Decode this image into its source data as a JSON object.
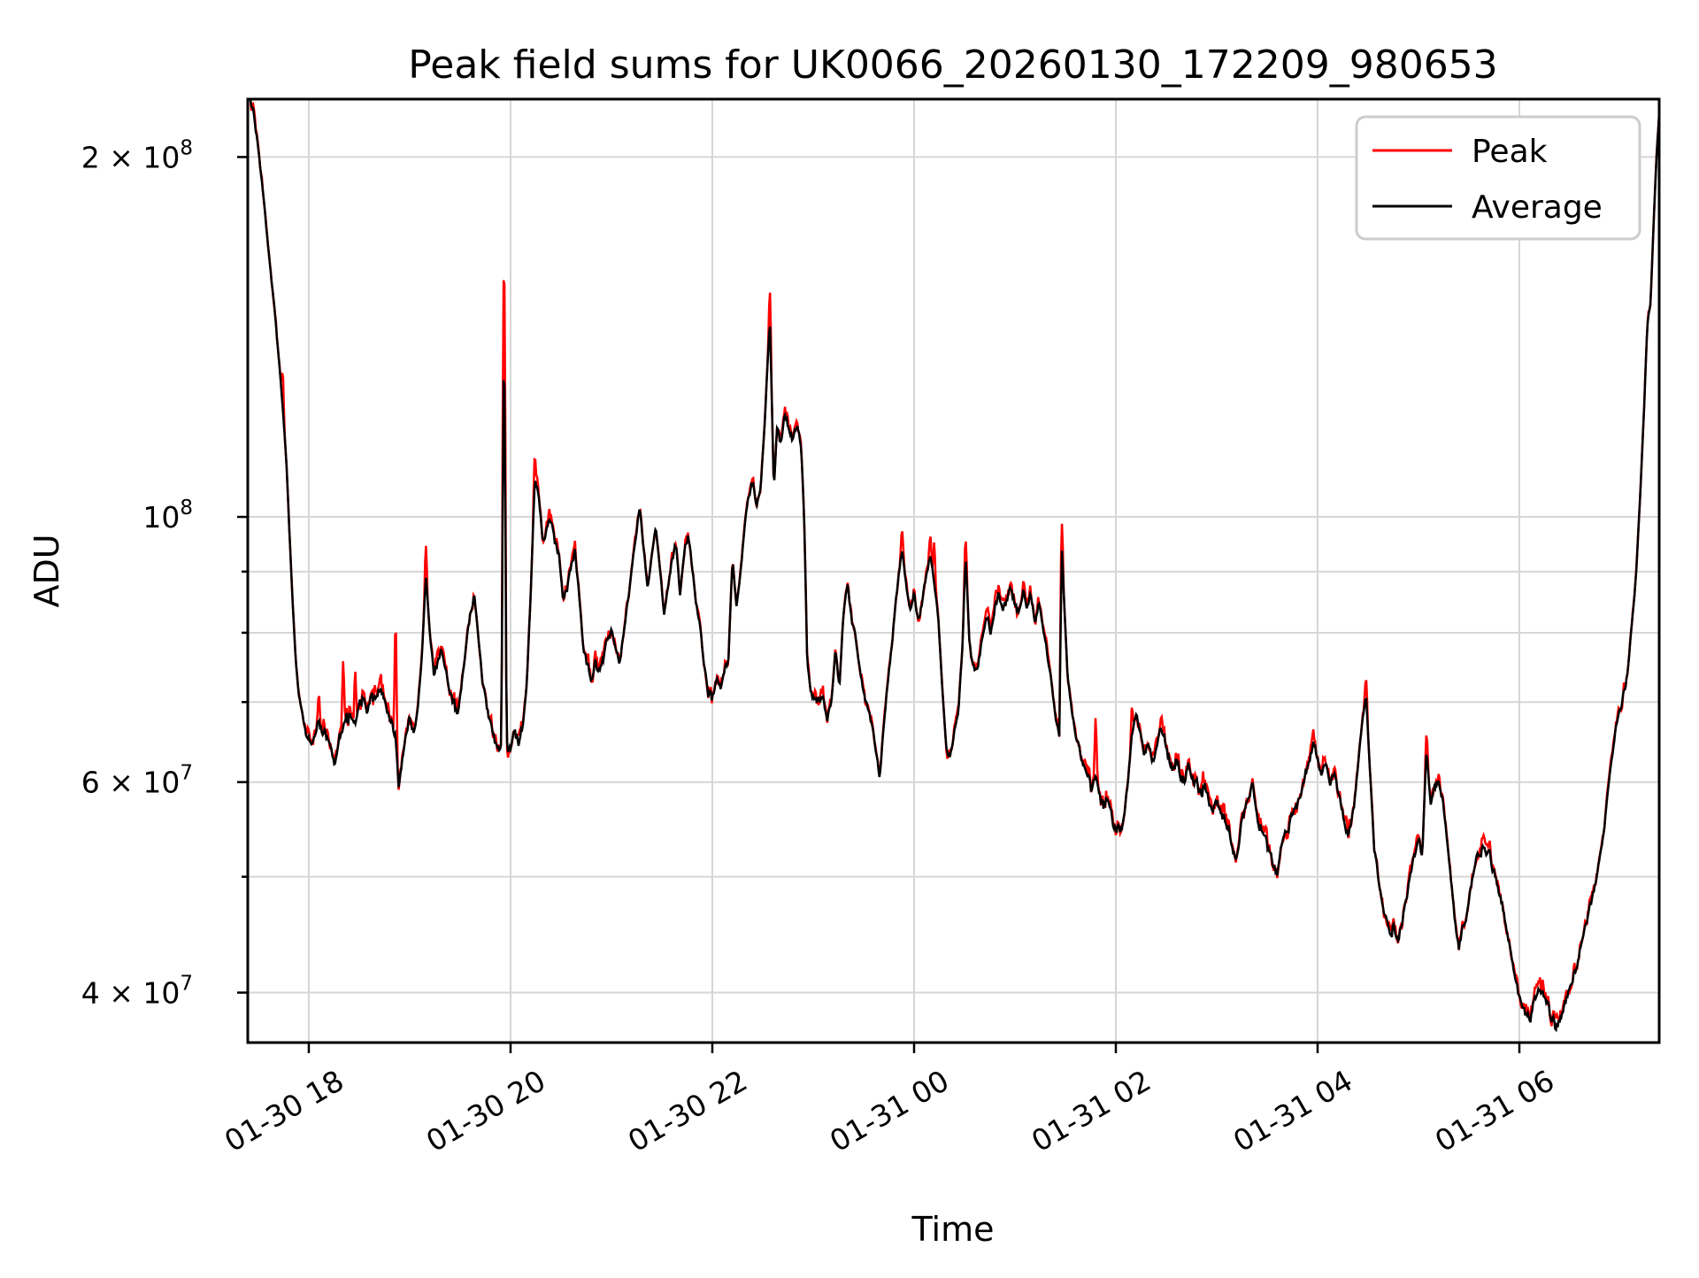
{
  "page": {
    "background": "#ffffff"
  },
  "chart_data": {
    "type": "line",
    "title": "Peak field sums for UK0066_20260130_172209_980653",
    "xlabel": "Time",
    "ylabel": "ADU",
    "y_scale": "log",
    "grid": true,
    "legend_position": "upper right",
    "colors": {
      "grid": "#d6d6d6",
      "frame": "#000000",
      "legend_border": "#cccccc",
      "peak": "#ff0000",
      "average": "#000000"
    },
    "series": [
      {
        "name": "Peak",
        "color": "#ff0000"
      },
      {
        "name": "Average",
        "color": "#000000"
      }
    ],
    "t_unit": "hours since 2026-01-30 00:00",
    "x_range_hours": [
      17.395,
      31.386
    ],
    "y_range_adu": [
      36330000,
      223600000
    ],
    "x_tick_labels": [
      {
        "hour": 18,
        "label": "01-30 18"
      },
      {
        "hour": 20,
        "label": "01-30 20"
      },
      {
        "hour": 22,
        "label": "01-30 22"
      },
      {
        "hour": 24,
        "label": "01-31 00"
      },
      {
        "hour": 26,
        "label": "01-31 02"
      },
      {
        "hour": 28,
        "label": "01-31 04"
      },
      {
        "hour": 30,
        "label": "01-31 06"
      }
    ],
    "y_tick_labels": [
      {
        "value": 200000000,
        "mantissa": "2",
        "exponent": "8"
      },
      {
        "value": 100000000,
        "mantissa": "",
        "exponent": "8"
      },
      {
        "value": 60000000,
        "mantissa": "6",
        "exponent": "7"
      },
      {
        "value": 40000000,
        "mantissa": "4",
        "exponent": "7"
      }
    ],
    "y_grid_values": [
      200000000,
      100000000,
      90000000,
      80000000,
      70000000,
      60000000,
      50000000,
      40000000
    ],
    "values_scale": 10000000,
    "average_points": [
      [
        17.4,
        22.4
      ],
      [
        17.44,
        22.2
      ],
      [
        17.47,
        21.2
      ],
      [
        17.5,
        20.3
      ],
      [
        17.54,
        18.9
      ],
      [
        17.58,
        17.4
      ],
      [
        17.62,
        16.1
      ],
      [
        17.66,
        14.9
      ],
      [
        17.7,
        13.6
      ],
      [
        17.74,
        12.4
      ],
      [
        17.78,
        11.0
      ],
      [
        17.81,
        9.6
      ],
      [
        17.84,
        8.5
      ],
      [
        17.87,
        7.6
      ],
      [
        17.9,
        7.1
      ],
      [
        17.94,
        6.8
      ],
      [
        17.98,
        6.55
      ],
      [
        18.02,
        6.45
      ],
      [
        18.06,
        6.6
      ],
      [
        18.1,
        6.75
      ],
      [
        18.14,
        6.55
      ],
      [
        18.18,
        6.6
      ],
      [
        18.22,
        6.35
      ],
      [
        18.26,
        6.2
      ],
      [
        18.3,
        6.55
      ],
      [
        18.34,
        6.7
      ],
      [
        18.38,
        6.75
      ],
      [
        18.42,
        6.85
      ],
      [
        18.46,
        6.7
      ],
      [
        18.5,
        7.0
      ],
      [
        18.54,
        7.1
      ],
      [
        18.58,
        6.85
      ],
      [
        18.62,
        7.1
      ],
      [
        18.66,
        7.0
      ],
      [
        18.7,
        7.2
      ],
      [
        18.74,
        7.05
      ],
      [
        18.78,
        6.85
      ],
      [
        18.82,
        6.7
      ],
      [
        18.86,
        6.55
      ],
      [
        18.89,
        5.95
      ],
      [
        18.92,
        6.2
      ],
      [
        18.96,
        6.55
      ],
      [
        19.0,
        6.75
      ],
      [
        19.04,
        6.55
      ],
      [
        19.08,
        6.9
      ],
      [
        19.12,
        7.6
      ],
      [
        19.16,
        8.9
      ],
      [
        19.2,
        8.0
      ],
      [
        19.24,
        7.4
      ],
      [
        19.28,
        7.55
      ],
      [
        19.32,
        7.75
      ],
      [
        19.36,
        7.5
      ],
      [
        19.4,
        7.1
      ],
      [
        19.44,
        6.95
      ],
      [
        19.48,
        6.9
      ],
      [
        19.52,
        7.3
      ],
      [
        19.56,
        7.8
      ],
      [
        19.6,
        8.3
      ],
      [
        19.64,
        8.6
      ],
      [
        19.68,
        7.9
      ],
      [
        19.72,
        7.3
      ],
      [
        19.76,
        6.95
      ],
      [
        19.8,
        6.7
      ],
      [
        19.84,
        6.5
      ],
      [
        19.88,
        6.35
      ],
      [
        19.91,
        6.5
      ],
      [
        19.935,
        14.3
      ],
      [
        19.96,
        6.4
      ],
      [
        20.0,
        6.35
      ],
      [
        20.04,
        6.6
      ],
      [
        20.08,
        6.5
      ],
      [
        20.12,
        6.7
      ],
      [
        20.16,
        7.2
      ],
      [
        20.2,
        8.6
      ],
      [
        20.24,
        10.7
      ],
      [
        20.28,
        10.4
      ],
      [
        20.32,
        9.5
      ],
      [
        20.36,
        9.8
      ],
      [
        20.4,
        10.0
      ],
      [
        20.44,
        9.5
      ],
      [
        20.48,
        9.3
      ],
      [
        20.52,
        8.5
      ],
      [
        20.56,
        8.7
      ],
      [
        20.6,
        9.1
      ],
      [
        20.64,
        9.3
      ],
      [
        20.68,
        8.6
      ],
      [
        20.72,
        7.8
      ],
      [
        20.76,
        7.5
      ],
      [
        20.8,
        7.35
      ],
      [
        20.84,
        7.5
      ],
      [
        20.88,
        7.4
      ],
      [
        20.92,
        7.6
      ],
      [
        20.96,
        7.9
      ],
      [
        21.0,
        8.1
      ],
      [
        21.04,
        7.8
      ],
      [
        21.08,
        7.5
      ],
      [
        21.12,
        8.0
      ],
      [
        21.16,
        8.5
      ],
      [
        21.2,
        9.0
      ],
      [
        21.24,
        9.6
      ],
      [
        21.28,
        10.2
      ],
      [
        21.32,
        9.4
      ],
      [
        21.36,
        8.7
      ],
      [
        21.4,
        9.3
      ],
      [
        21.44,
        9.8
      ],
      [
        21.48,
        9.1
      ],
      [
        21.52,
        8.3
      ],
      [
        21.56,
        8.7
      ],
      [
        21.6,
        9.2
      ],
      [
        21.64,
        9.5
      ],
      [
        21.68,
        8.6
      ],
      [
        21.72,
        9.3
      ],
      [
        21.76,
        9.6
      ],
      [
        21.8,
        9.1
      ],
      [
        21.84,
        8.4
      ],
      [
        21.88,
        8.1
      ],
      [
        21.92,
        7.5
      ],
      [
        21.96,
        7.1
      ],
      [
        22.0,
        7.05
      ],
      [
        22.04,
        7.3
      ],
      [
        22.08,
        7.15
      ],
      [
        22.12,
        7.4
      ],
      [
        22.16,
        7.6
      ],
      [
        22.2,
        9.2
      ],
      [
        22.24,
        8.4
      ],
      [
        22.28,
        9.0
      ],
      [
        22.32,
        9.8
      ],
      [
        22.36,
        10.4
      ],
      [
        22.4,
        10.7
      ],
      [
        22.44,
        10.2
      ],
      [
        22.48,
        10.6
      ],
      [
        22.52,
        12.0
      ],
      [
        22.57,
        14.6
      ],
      [
        22.61,
        10.5
      ],
      [
        22.64,
        11.8
      ],
      [
        22.68,
        11.5
      ],
      [
        22.72,
        12.2
      ],
      [
        22.76,
        11.9
      ],
      [
        22.8,
        11.6
      ],
      [
        22.84,
        12.0
      ],
      [
        22.88,
        11.5
      ],
      [
        22.91,
        10.0
      ],
      [
        22.94,
        7.6
      ],
      [
        22.98,
        7.1
      ],
      [
        23.02,
        7.0
      ],
      [
        23.06,
        6.95
      ],
      [
        23.1,
        7.05
      ],
      [
        23.14,
        6.75
      ],
      [
        23.18,
        7.0
      ],
      [
        23.22,
        7.7
      ],
      [
        23.26,
        7.2
      ],
      [
        23.3,
        8.3
      ],
      [
        23.34,
        8.8
      ],
      [
        23.38,
        8.2
      ],
      [
        23.42,
        7.9
      ],
      [
        23.46,
        7.5
      ],
      [
        23.5,
        7.1
      ],
      [
        23.54,
        6.9
      ],
      [
        23.58,
        6.7
      ],
      [
        23.62,
        6.4
      ],
      [
        23.66,
        6.05
      ],
      [
        23.7,
        6.7
      ],
      [
        23.74,
        7.3
      ],
      [
        23.78,
        7.8
      ],
      [
        23.82,
        8.5
      ],
      [
        23.88,
        9.4
      ],
      [
        23.92,
        8.8
      ],
      [
        23.96,
        8.3
      ],
      [
        24.0,
        8.6
      ],
      [
        24.04,
        8.2
      ],
      [
        24.08,
        8.5
      ],
      [
        24.12,
        8.9
      ],
      [
        24.16,
        9.3
      ],
      [
        24.2,
        8.8
      ],
      [
        24.24,
        8.2
      ],
      [
        24.28,
        7.2
      ],
      [
        24.32,
        6.4
      ],
      [
        24.36,
        6.3
      ],
      [
        24.4,
        6.6
      ],
      [
        24.44,
        6.9
      ],
      [
        24.48,
        7.8
      ],
      [
        24.51,
        9.3
      ],
      [
        24.55,
        7.8
      ],
      [
        24.6,
        7.4
      ],
      [
        24.64,
        7.6
      ],
      [
        24.68,
        7.9
      ],
      [
        24.72,
        8.3
      ],
      [
        24.76,
        8.0
      ],
      [
        24.8,
        8.4
      ],
      [
        24.84,
        8.6
      ],
      [
        24.88,
        8.3
      ],
      [
        24.92,
        8.5
      ],
      [
        24.96,
        8.7
      ],
      [
        25.0,
        8.5
      ],
      [
        25.04,
        8.3
      ],
      [
        25.08,
        8.7
      ],
      [
        25.12,
        8.4
      ],
      [
        25.16,
        8.6
      ],
      [
        25.2,
        8.2
      ],
      [
        25.24,
        8.5
      ],
      [
        25.28,
        8.1
      ],
      [
        25.32,
        7.7
      ],
      [
        25.36,
        7.3
      ],
      [
        25.4,
        6.8
      ],
      [
        25.44,
        6.6
      ],
      [
        25.465,
        9.4
      ],
      [
        25.49,
        8.4
      ],
      [
        25.52,
        7.4
      ],
      [
        25.56,
        6.9
      ],
      [
        25.6,
        6.6
      ],
      [
        25.64,
        6.4
      ],
      [
        25.68,
        6.2
      ],
      [
        25.72,
        6.0
      ],
      [
        25.76,
        5.9
      ],
      [
        25.8,
        6.1
      ],
      [
        25.84,
        5.85
      ],
      [
        25.88,
        5.7
      ],
      [
        25.92,
        5.8
      ],
      [
        25.96,
        5.6
      ],
      [
        26.0,
        5.5
      ],
      [
        26.04,
        5.45
      ],
      [
        26.08,
        5.6
      ],
      [
        26.12,
        6.0
      ],
      [
        26.16,
        6.6
      ],
      [
        26.2,
        6.85
      ],
      [
        26.24,
        6.6
      ],
      [
        26.28,
        6.3
      ],
      [
        26.32,
        6.45
      ],
      [
        26.36,
        6.25
      ],
      [
        26.4,
        6.4
      ],
      [
        26.44,
        6.6
      ],
      [
        26.48,
        6.55
      ],
      [
        26.52,
        6.3
      ],
      [
        26.56,
        6.15
      ],
      [
        26.6,
        6.25
      ],
      [
        26.64,
        6.1
      ],
      [
        26.68,
        6.0
      ],
      [
        26.72,
        6.2
      ],
      [
        26.76,
        6.1
      ],
      [
        26.8,
        6.0
      ],
      [
        26.84,
        5.9
      ],
      [
        26.88,
        5.95
      ],
      [
        26.92,
        5.8
      ],
      [
        26.96,
        5.65
      ],
      [
        27.0,
        5.8
      ],
      [
        27.04,
        5.7
      ],
      [
        27.08,
        5.6
      ],
      [
        27.12,
        5.5
      ],
      [
        27.16,
        5.3
      ],
      [
        27.2,
        5.15
      ],
      [
        27.24,
        5.5
      ],
      [
        27.28,
        5.7
      ],
      [
        27.32,
        5.85
      ],
      [
        27.36,
        5.95
      ],
      [
        27.4,
        5.6
      ],
      [
        27.44,
        5.5
      ],
      [
        27.48,
        5.35
      ],
      [
        27.52,
        5.25
      ],
      [
        27.56,
        5.15
      ],
      [
        27.6,
        5.05
      ],
      [
        27.64,
        5.3
      ],
      [
        27.68,
        5.5
      ],
      [
        27.72,
        5.55
      ],
      [
        27.76,
        5.7
      ],
      [
        27.8,
        5.75
      ],
      [
        27.84,
        5.9
      ],
      [
        27.88,
        6.1
      ],
      [
        27.92,
        6.3
      ],
      [
        27.96,
        6.4
      ],
      [
        28.0,
        6.3
      ],
      [
        28.04,
        6.1
      ],
      [
        28.08,
        6.2
      ],
      [
        28.12,
        6.0
      ],
      [
        28.16,
        6.15
      ],
      [
        28.2,
        5.9
      ],
      [
        28.24,
        5.7
      ],
      [
        28.28,
        5.5
      ],
      [
        28.32,
        5.45
      ],
      [
        28.36,
        5.7
      ],
      [
        28.4,
        6.2
      ],
      [
        28.44,
        6.7
      ],
      [
        28.48,
        7.1
      ],
      [
        28.52,
        6.1
      ],
      [
        28.56,
        5.3
      ],
      [
        28.6,
        5.0
      ],
      [
        28.64,
        4.75
      ],
      [
        28.68,
        4.6
      ],
      [
        28.72,
        4.5
      ],
      [
        28.76,
        4.55
      ],
      [
        28.8,
        4.45
      ],
      [
        28.84,
        4.6
      ],
      [
        28.88,
        4.8
      ],
      [
        28.92,
        5.0
      ],
      [
        28.96,
        5.2
      ],
      [
        29.0,
        5.35
      ],
      [
        29.04,
        5.25
      ],
      [
        29.08,
        6.4
      ],
      [
        29.12,
        5.75
      ],
      [
        29.16,
        5.9
      ],
      [
        29.2,
        6.05
      ],
      [
        29.24,
        5.8
      ],
      [
        29.28,
        5.4
      ],
      [
        29.32,
        5.0
      ],
      [
        29.36,
        4.6
      ],
      [
        29.4,
        4.35
      ],
      [
        29.44,
        4.55
      ],
      [
        29.48,
        4.65
      ],
      [
        29.52,
        4.9
      ],
      [
        29.56,
        5.1
      ],
      [
        29.6,
        5.2
      ],
      [
        29.64,
        5.3
      ],
      [
        29.68,
        5.25
      ],
      [
        29.72,
        5.15
      ],
      [
        29.76,
        5.0
      ],
      [
        29.8,
        4.85
      ],
      [
        29.84,
        4.7
      ],
      [
        29.88,
        4.5
      ],
      [
        29.92,
        4.3
      ],
      [
        29.96,
        4.1
      ],
      [
        30.0,
        3.95
      ],
      [
        30.04,
        3.85
      ],
      [
        30.08,
        3.8
      ],
      [
        30.12,
        3.85
      ],
      [
        30.16,
        3.95
      ],
      [
        30.2,
        4.05
      ],
      [
        30.24,
        4.0
      ],
      [
        30.28,
        3.9
      ],
      [
        30.32,
        3.8
      ],
      [
        30.36,
        3.75
      ],
      [
        30.4,
        3.8
      ],
      [
        30.44,
        3.9
      ],
      [
        30.48,
        4.0
      ],
      [
        30.52,
        4.1
      ],
      [
        30.56,
        4.2
      ],
      [
        30.6,
        4.35
      ],
      [
        30.64,
        4.5
      ],
      [
        30.68,
        4.65
      ],
      [
        30.72,
        4.8
      ],
      [
        30.76,
        4.95
      ],
      [
        30.8,
        5.2
      ],
      [
        30.84,
        5.5
      ],
      [
        30.88,
        5.9
      ],
      [
        30.92,
        6.3
      ],
      [
        30.96,
        6.7
      ],
      [
        31.0,
        7.0
      ],
      [
        31.04,
        7.1
      ],
      [
        31.08,
        7.5
      ],
      [
        31.12,
        8.2
      ],
      [
        31.16,
        9.0
      ],
      [
        31.2,
        10.5
      ],
      [
        31.24,
        12.5
      ],
      [
        31.27,
        14.5
      ],
      [
        31.3,
        15.0
      ],
      [
        31.33,
        17.5
      ],
      [
        31.36,
        20.0
      ],
      [
        31.4,
        22.6
      ]
    ],
    "peak_baseline_ratio": 1.012,
    "peak_spikes": [
      [
        17.74,
        13.4
      ],
      [
        18.1,
        7.15
      ],
      [
        18.34,
        7.6
      ],
      [
        18.46,
        7.5
      ],
      [
        18.86,
        8.45
      ],
      [
        19.16,
        9.5
      ],
      [
        19.935,
        16.6
      ],
      [
        20.24,
        11.3
      ],
      [
        22.57,
        15.5
      ],
      [
        23.88,
        9.8
      ],
      [
        24.16,
        9.7
      ],
      [
        24.2,
        9.6
      ],
      [
        24.51,
        9.6
      ],
      [
        25.465,
        9.9
      ],
      [
        25.8,
        6.85
      ],
      [
        26.16,
        7.0
      ],
      [
        28.48,
        7.35
      ],
      [
        29.08,
        6.6
      ]
    ]
  }
}
